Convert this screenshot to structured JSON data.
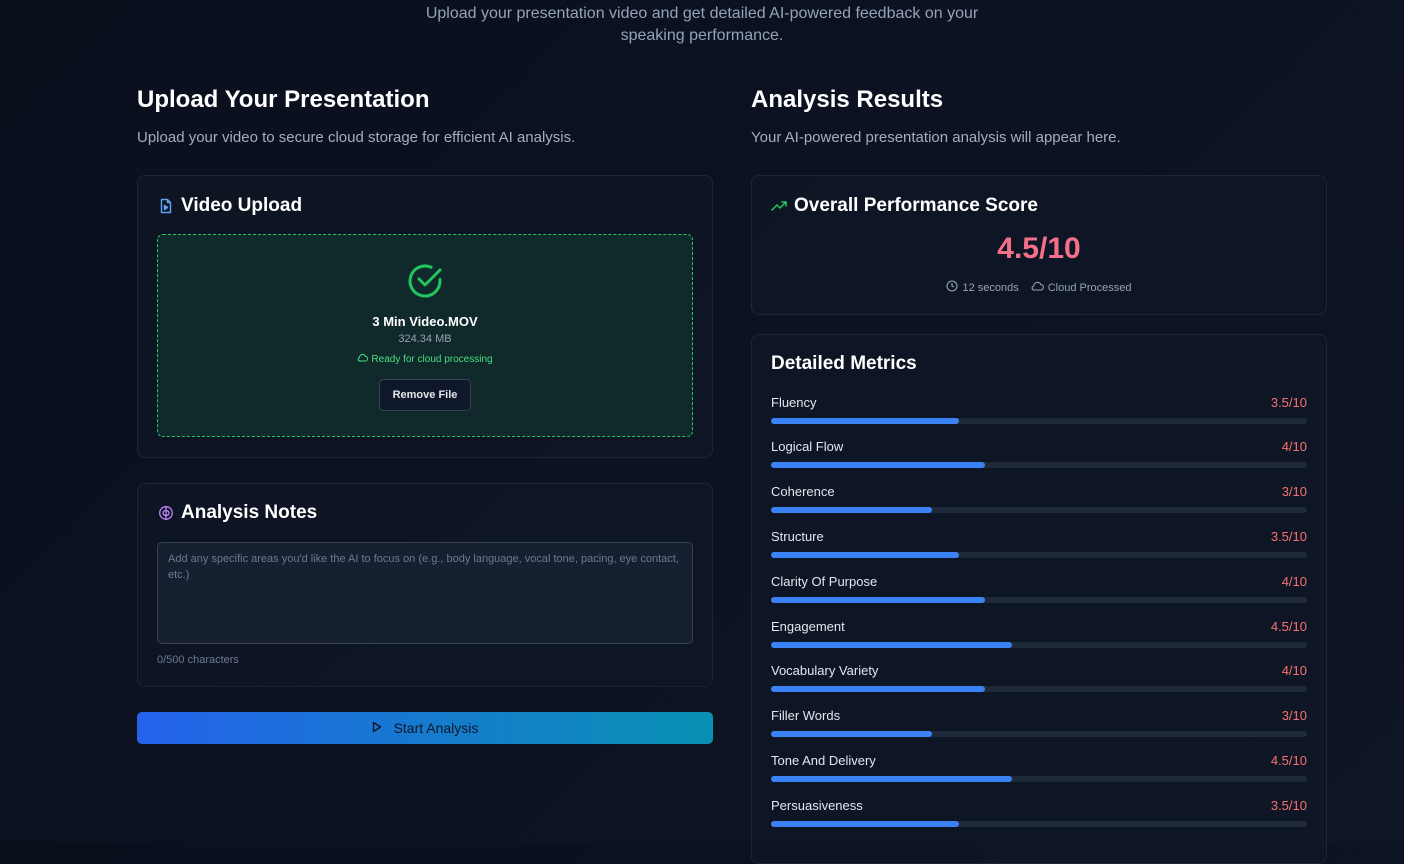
{
  "intro": {
    "line1": "Upload your presentation video and get detailed AI-powered feedback on your",
    "line2": "speaking performance."
  },
  "upload_section": {
    "title": "Upload Your Presentation",
    "subtitle": "Upload your video to secure cloud storage for efficient AI analysis."
  },
  "video_upload": {
    "title": "Video Upload",
    "file_name": "3 Min Video.MOV",
    "file_size": "324.34 MB",
    "status": "Ready for cloud processing",
    "remove_label": "Remove File"
  },
  "analysis_notes": {
    "title": "Analysis Notes",
    "value": "",
    "placeholder": "Add any specific areas you'd like the AI to focus on (e.g., body language, vocal tone, pacing, eye contact, etc.)",
    "char_count": "0/500 characters"
  },
  "start_button": {
    "label": "Start Analysis"
  },
  "results_section": {
    "title": "Analysis Results",
    "subtitle": "Your AI-powered presentation analysis will appear here."
  },
  "overall": {
    "title": "Overall Performance Score",
    "score": "4.5/10",
    "duration": "12 seconds",
    "processed": "Cloud Processed"
  },
  "metrics": {
    "title": "Detailed Metrics",
    "items": [
      {
        "label": "Fluency",
        "score": "3.5/10",
        "value": 3.5
      },
      {
        "label": "Logical Flow",
        "score": "4/10",
        "value": 4
      },
      {
        "label": "Coherence",
        "score": "3/10",
        "value": 3
      },
      {
        "label": "Structure",
        "score": "3.5/10",
        "value": 3.5
      },
      {
        "label": "Clarity Of Purpose",
        "score": "4/10",
        "value": 4
      },
      {
        "label": "Engagement",
        "score": "4.5/10",
        "value": 4.5
      },
      {
        "label": "Vocabulary Variety",
        "score": "4/10",
        "value": 4
      },
      {
        "label": "Filler Words",
        "score": "3/10",
        "value": 3
      },
      {
        "label": "Tone And Delivery",
        "score": "4.5/10",
        "value": 4.5
      },
      {
        "label": "Persuasiveness",
        "score": "3.5/10",
        "value": 3.5
      }
    ],
    "max": 10
  },
  "colors": {
    "accent_green": "#22c55e",
    "score_pink": "#f4708a",
    "metric_score_red": "#f87171",
    "bar_blue": "#3b82f6",
    "button_gradient_start": "#2563eb",
    "button_gradient_end": "#0891b2"
  },
  "icons": {
    "video_upload": "file-video-icon",
    "analysis_notes": "brain-icon",
    "upload_status": "check-circle-icon",
    "ready": "cloud-icon",
    "start": "play-icon",
    "overall": "trending-up-icon",
    "duration": "clock-icon",
    "processed": "cloud-icon"
  }
}
